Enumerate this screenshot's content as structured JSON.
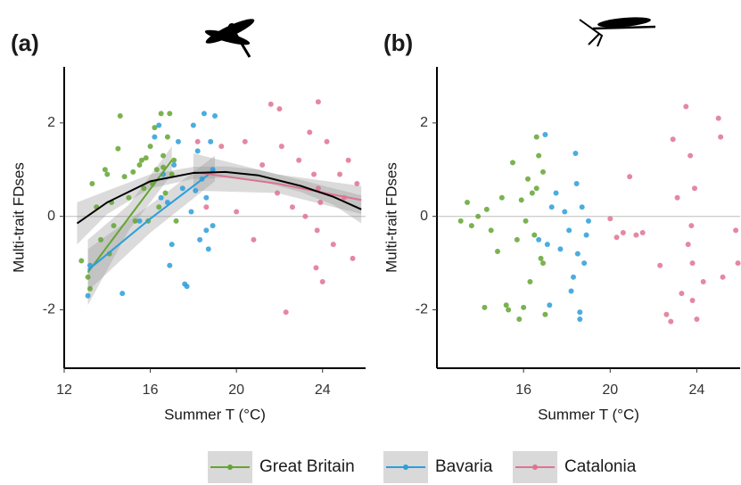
{
  "chart_data": [
    {
      "type": "scatter",
      "title": "(a)",
      "x_label": "Summer T (°C)",
      "y_label": "Multi-trait FDses",
      "xlim": [
        12,
        26
      ],
      "ylim": [
        -3.25,
        3.2
      ],
      "xticks": [
        12,
        16,
        20,
        24
      ],
      "yticks": [
        -2,
        0,
        2
      ],
      "zero_line": 0,
      "series": [
        {
          "name": "Great Britain",
          "color": "#64a532",
          "x": [
            12.8,
            13.2,
            13.3,
            13.5,
            13.7,
            13.9,
            14.0,
            14.2,
            14.3,
            14.5,
            14.6,
            14.8,
            15.0,
            15.2,
            15.3,
            15.5,
            15.7,
            15.8,
            15.9,
            16.0,
            16.1,
            16.2,
            16.3,
            16.4,
            16.5,
            16.6,
            16.7,
            16.8,
            16.9,
            17.0,
            17.1,
            17.2,
            14.1,
            15.6,
            16.6,
            13.1
          ],
          "values": [
            -0.95,
            -1.55,
            0.7,
            0.2,
            -0.5,
            1.0,
            0.9,
            0.3,
            -0.2,
            1.45,
            2.15,
            0.85,
            0.4,
            0.95,
            -0.1,
            1.1,
            0.6,
            1.25,
            -0.1,
            1.5,
            0.7,
            1.9,
            1.0,
            0.2,
            2.2,
            1.3,
            0.5,
            1.7,
            2.2,
            0.9,
            1.2,
            -0.1,
            -0.8,
            1.2,
            1.05,
            -1.3
          ]
        },
        {
          "name": "Bavaria",
          "color": "#2c9fd9",
          "x": [
            13.1,
            13.2,
            14.7,
            15.5,
            16.2,
            16.4,
            16.6,
            16.8,
            16.9,
            17.1,
            17.3,
            17.5,
            17.7,
            17.9,
            18.0,
            18.2,
            18.3,
            18.4,
            18.5,
            18.6,
            18.7,
            18.8,
            18.9,
            19.0,
            17.0,
            17.6,
            18.1,
            18.6,
            16.5,
            18.9
          ],
          "values": [
            -1.7,
            -1.05,
            -1.65,
            -0.1,
            1.7,
            1.95,
            0.9,
            0.3,
            -1.05,
            1.1,
            1.6,
            0.6,
            -1.5,
            0.1,
            1.95,
            1.4,
            -0.5,
            0.8,
            2.2,
            0.4,
            -0.7,
            1.6,
            -0.2,
            2.15,
            -0.6,
            -1.45,
            0.55,
            -0.3,
            0.4,
            1.0
          ]
        },
        {
          "name": "Catalonia",
          "color": "#df7391",
          "x": [
            18.2,
            18.6,
            19.3,
            20.0,
            20.4,
            20.8,
            21.2,
            21.6,
            21.9,
            22.1,
            22.3,
            22.6,
            22.9,
            23.2,
            23.4,
            23.6,
            23.7,
            23.8,
            23.9,
            24.0,
            24.2,
            24.5,
            24.8,
            25.0,
            25.2,
            25.4,
            25.6,
            23.75,
            23.8,
            22.0
          ],
          "values": [
            1.6,
            0.2,
            1.5,
            0.1,
            1.6,
            -0.5,
            1.1,
            2.4,
            0.5,
            1.5,
            -2.05,
            0.2,
            1.2,
            0.0,
            1.8,
            0.9,
            -1.1,
            2.45,
            0.3,
            -1.4,
            1.6,
            -0.6,
            0.9,
            0.4,
            1.2,
            -0.9,
            0.7,
            -0.3,
            0.6,
            2.3
          ]
        }
      ],
      "fits": [
        {
          "color": "#64a532",
          "x": [
            13.1,
            15.0,
            17.0
          ],
          "values": [
            -1.2,
            -0.03,
            1.2
          ],
          "lower": [
            -1.9,
            -0.3,
            0.9
          ],
          "upper": [
            -0.5,
            0.25,
            1.5
          ]
        },
        {
          "color": "#2c9fd9",
          "x": [
            13.1,
            16.0,
            19.0
          ],
          "values": [
            -1.15,
            -0.05,
            1.0
          ],
          "lower": [
            -1.6,
            -0.35,
            0.75
          ],
          "upper": [
            -0.7,
            0.25,
            1.3
          ]
        },
        {
          "color": "#df7391",
          "x": [
            18.0,
            21.9,
            25.8
          ],
          "values": [
            0.95,
            0.7,
            0.35
          ],
          "lower": [
            0.55,
            0.5,
            0.05
          ],
          "upper": [
            1.35,
            0.9,
            0.65
          ]
        },
        {
          "color": "#000000",
          "x": [
            12.6,
            14,
            16,
            18,
            19.5,
            21,
            23,
            24.5,
            25.8
          ],
          "values": [
            -0.15,
            0.3,
            0.75,
            0.93,
            0.95,
            0.88,
            0.65,
            0.42,
            0.15
          ],
          "lower": [
            -0.6,
            0.05,
            0.6,
            0.8,
            0.83,
            0.77,
            0.52,
            0.25,
            -0.15
          ],
          "upper": [
            0.3,
            0.55,
            0.9,
            1.06,
            1.07,
            1.0,
            0.78,
            0.6,
            0.45
          ]
        }
      ]
    },
    {
      "type": "scatter",
      "title": "(b)",
      "x_label": "Summer T (°C)",
      "y_label": "Multi-trait FDses",
      "xlim": [
        12,
        26
      ],
      "ylim": [
        -3.25,
        3.2
      ],
      "xticks": [
        16,
        20,
        24
      ],
      "yticks": [
        -2,
        0,
        2
      ],
      "zero_line": 0,
      "series": [
        {
          "color": "#64a532",
          "x": [
            13.1,
            13.4,
            13.6,
            13.9,
            14.2,
            14.5,
            14.8,
            15.0,
            15.3,
            15.5,
            15.7,
            15.9,
            16.0,
            16.2,
            16.3,
            16.4,
            16.5,
            16.6,
            16.7,
            16.8,
            16.9,
            17.0,
            14.3,
            15.2,
            16.1,
            16.6,
            16.9,
            15.8
          ],
          "values": [
            -0.1,
            0.3,
            -0.2,
            0.0,
            -1.95,
            -0.3,
            -0.75,
            0.4,
            -2.0,
            1.15,
            -0.5,
            0.35,
            -1.95,
            0.8,
            -1.4,
            0.5,
            -0.4,
            1.7,
            1.3,
            -0.9,
            0.95,
            -2.1,
            0.15,
            -1.9,
            -0.1,
            0.6,
            -1.0,
            -2.2
          ]
        },
        {
          "color": "#2c9fd9",
          "x": [
            16.7,
            17.0,
            17.2,
            17.5,
            17.7,
            17.9,
            18.1,
            18.3,
            18.4,
            18.5,
            18.6,
            18.7,
            18.9,
            19.0,
            17.3,
            18.2,
            18.6,
            18.45,
            17.1,
            18.8
          ],
          "values": [
            -0.5,
            1.75,
            -1.9,
            0.5,
            -0.7,
            0.1,
            -0.3,
            -1.3,
            1.35,
            -0.8,
            -2.2,
            0.2,
            -0.4,
            -0.1,
            0.2,
            -1.6,
            -2.05,
            0.7,
            -0.6,
            -1.0
          ]
        },
        {
          "color": "#df7391",
          "x": [
            20.0,
            20.3,
            20.6,
            20.9,
            21.2,
            21.5,
            22.3,
            22.6,
            22.9,
            23.1,
            23.3,
            23.5,
            23.6,
            23.7,
            23.8,
            23.9,
            24.0,
            24.3,
            25.0,
            25.1,
            25.2,
            25.8,
            25.9,
            23.75,
            23.8,
            22.8
          ],
          "values": [
            -0.05,
            -0.45,
            -0.35,
            0.85,
            -0.4,
            -0.35,
            -1.05,
            -2.1,
            1.65,
            0.4,
            -1.65,
            2.35,
            -0.6,
            1.3,
            -1.0,
            0.6,
            -2.2,
            -1.4,
            2.1,
            1.7,
            -1.3,
            -0.3,
            -1.0,
            -0.2,
            -1.8,
            -2.25
          ]
        }
      ]
    }
  ]
}
